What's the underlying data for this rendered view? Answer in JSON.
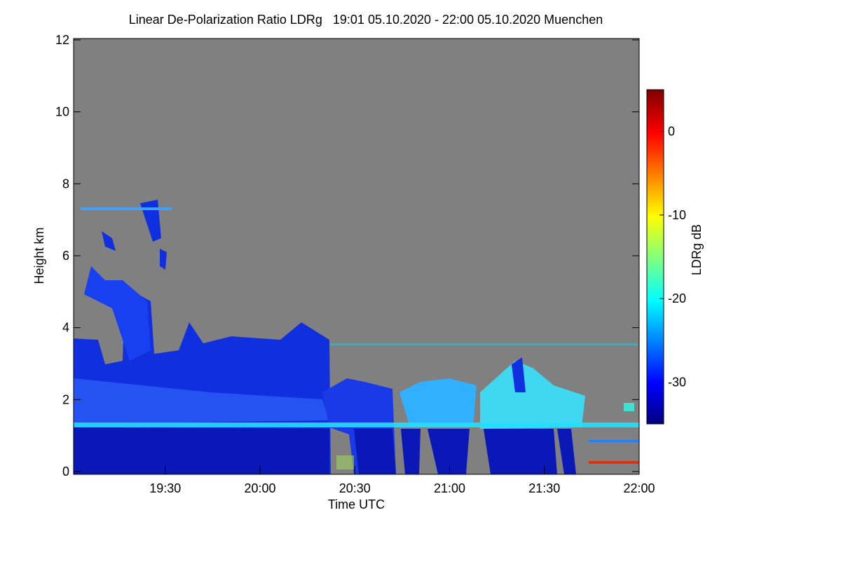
{
  "chart_data": {
    "type": "heatmap",
    "title": "Linear De-Polarization Ratio LDRg   19:01 05.10.2020 - 22:00 05.10.2020 Muenchen",
    "x_label": "Time UTC",
    "y_label": "Height km",
    "xlim": [
      1,
      180
    ],
    "xticks": [
      {
        "value": 30,
        "label": "19:30"
      },
      {
        "value": 60,
        "label": "20:00"
      },
      {
        "value": 90,
        "label": "20:30"
      },
      {
        "value": 120,
        "label": "21:00"
      },
      {
        "value": 150,
        "label": "21:30"
      },
      {
        "value": 180,
        "label": "22:00"
      }
    ],
    "ylim": [
      0,
      12
    ],
    "yticks": [
      0,
      2,
      4,
      6,
      8,
      10,
      12
    ],
    "colorbar": {
      "label": "LDRg dB",
      "lim": [
        -35,
        5
      ],
      "ticks": [
        0,
        -10,
        -20,
        -30
      ]
    }
  }
}
